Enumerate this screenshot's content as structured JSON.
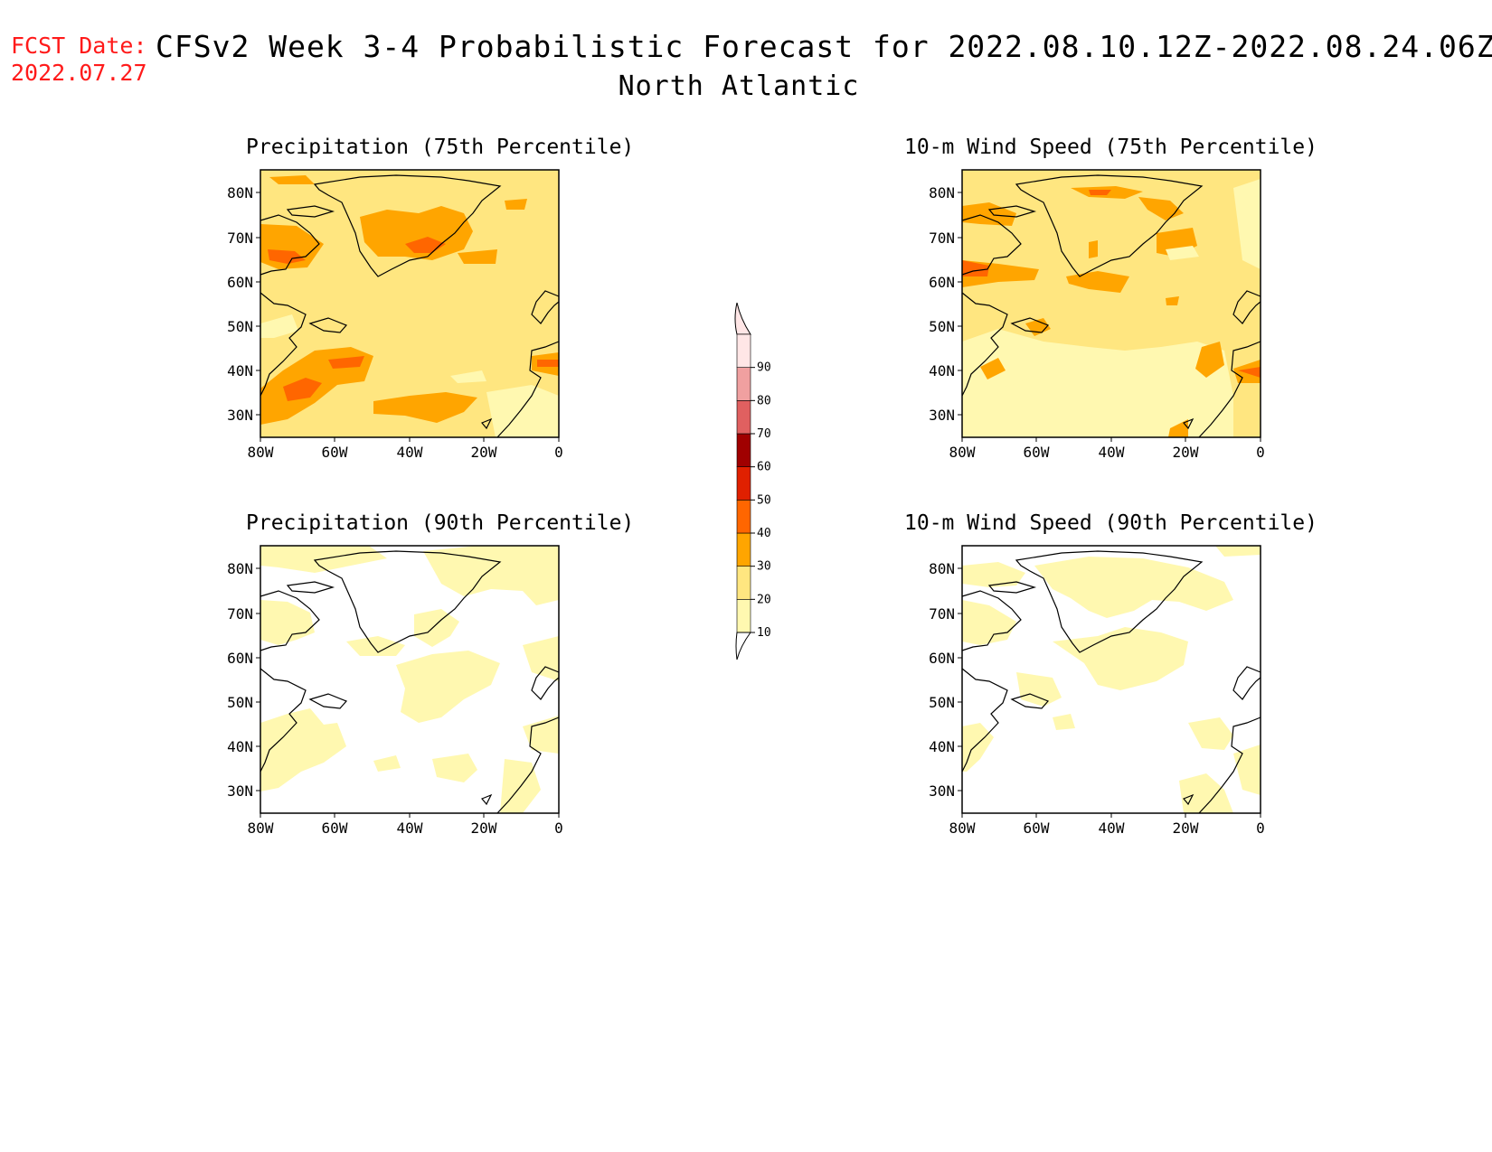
{
  "header": {
    "fcst_label": "FCST Date:",
    "fcst_date": "2022.07.27",
    "title": "CFSv2 Week 3-4 Probabilistic Forecast for 2022.08.10.12Z-2022.08.24.06Z",
    "region": "North Atlantic"
  },
  "panels": [
    {
      "title": "Precipitation (75th Percentile)"
    },
    {
      "title": "10-m Wind Speed (75th Percentile)"
    },
    {
      "title": "Precipitation (90th Percentile)"
    },
    {
      "title": "10-m Wind Speed (90th Percentile)"
    }
  ],
  "axes": {
    "lat_labels": [
      "80N",
      "70N",
      "60N",
      "50N",
      "40N",
      "30N"
    ],
    "lon_labels": [
      "80W",
      "60W",
      "40W",
      "20W",
      "0"
    ]
  },
  "colorbar": {
    "levels": [
      "10",
      "20",
      "30",
      "40",
      "50",
      "60",
      "70",
      "80",
      "90"
    ],
    "colors": [
      "#fff8b0",
      "#ffe680",
      "#ffa500",
      "#ff6600",
      "#e02000",
      "#a00000",
      "#e06060",
      "#f0a0a0",
      "#ffe6e6"
    ]
  },
  "colors": {
    "fcst_date": "#ff1a1a",
    "prob_10_20": "#fff8b0",
    "prob_20_30": "#ffe680",
    "prob_30_40": "#ffa500",
    "prob_40_50": "#ff6600"
  }
}
